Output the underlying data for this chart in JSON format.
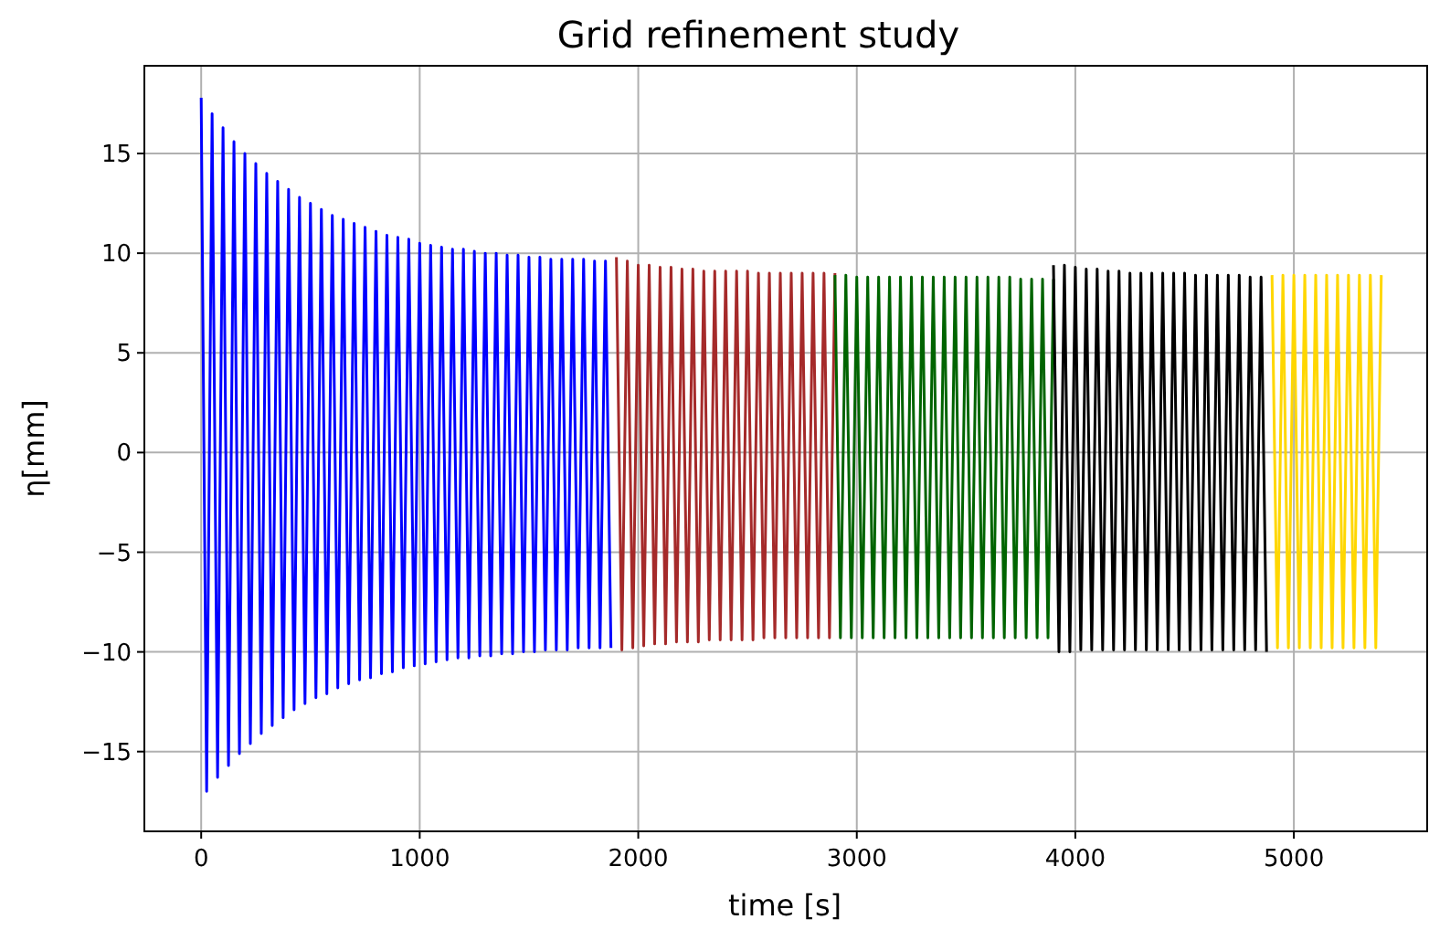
{
  "chart_data": {
    "type": "line",
    "title": "Grid refinement study",
    "xlabel": "time [s]",
    "ylabel": "η[mm]",
    "xlim": [
      -260,
      5610
    ],
    "ylim": [
      -19.0,
      19.4
    ],
    "xticks": [
      0,
      1000,
      2000,
      3000,
      4000,
      5000
    ],
    "yticks": [
      {
        "value": -15,
        "label": "−15"
      },
      {
        "value": -10,
        "label": "−10"
      },
      {
        "value": -5,
        "label": "−5"
      },
      0,
      5,
      10,
      15
    ],
    "grid": true,
    "line_style": "solid",
    "marker": "none",
    "series": [
      {
        "color": "#0000ff",
        "x": [
          0,
          25,
          50,
          75,
          100,
          125,
          150,
          175,
          200,
          225,
          250,
          275,
          300,
          325,
          350,
          375,
          400,
          425,
          450,
          475,
          500,
          525,
          550,
          575,
          600,
          625,
          650,
          675,
          700,
          725,
          750,
          775,
          800,
          825,
          850,
          875,
          900,
          925,
          950,
          975,
          1000,
          1025,
          1050,
          1075,
          1100,
          1125,
          1150,
          1175,
          1200,
          1225,
          1250,
          1275,
          1300,
          1325,
          1350,
          1375,
          1400,
          1425,
          1450,
          1475,
          1500,
          1525,
          1550,
          1575,
          1600,
          1625,
          1650,
          1675,
          1700,
          1725,
          1750,
          1775,
          1800,
          1825,
          1850,
          1875
        ],
        "values": [
          17.8,
          -17.0,
          17.0,
          -16.3,
          16.3,
          -15.7,
          15.6,
          -15.1,
          15.0,
          -14.6,
          14.5,
          -14.1,
          14.0,
          -13.7,
          13.6,
          -13.3,
          13.2,
          -12.9,
          12.8,
          -12.6,
          12.5,
          -12.3,
          12.2,
          -12.1,
          11.9,
          -11.8,
          11.7,
          -11.6,
          11.5,
          -11.4,
          11.3,
          -11.3,
          11.1,
          -11.1,
          10.9,
          -11.0,
          10.8,
          -10.8,
          10.7,
          -10.7,
          10.5,
          -10.6,
          10.4,
          -10.5,
          10.3,
          -10.4,
          10.2,
          -10.3,
          10.2,
          -10.3,
          10.1,
          -10.2,
          10.0,
          -10.2,
          10.0,
          -10.1,
          9.9,
          -10.1,
          9.9,
          -10.0,
          9.8,
          -10.0,
          9.8,
          -9.9,
          9.7,
          -9.9,
          9.7,
          -9.9,
          9.7,
          -9.8,
          9.7,
          -9.8,
          9.6,
          -9.8,
          9.6,
          -9.8
        ]
      },
      {
        "color": "#a52a2a",
        "x": [
          1900,
          1925,
          1950,
          1975,
          2000,
          2025,
          2050,
          2075,
          2100,
          2125,
          2150,
          2175,
          2200,
          2225,
          2250,
          2275,
          2300,
          2325,
          2350,
          2375,
          2400,
          2425,
          2450,
          2475,
          2500,
          2525,
          2550,
          2575,
          2600,
          2625,
          2650,
          2675,
          2700,
          2725,
          2750,
          2775,
          2800,
          2825,
          2850,
          2875,
          2900
        ],
        "values": [
          9.8,
          -9.9,
          9.6,
          -9.8,
          9.4,
          -9.7,
          9.4,
          -9.6,
          9.3,
          -9.6,
          9.3,
          -9.5,
          9.2,
          -9.5,
          9.2,
          -9.5,
          9.1,
          -9.4,
          9.1,
          -9.4,
          9.1,
          -9.4,
          9.1,
          -9.4,
          9.1,
          -9.4,
          9.0,
          -9.3,
          9.0,
          -9.3,
          9.0,
          -9.3,
          9.0,
          -9.3,
          9.0,
          -9.3,
          9.0,
          -9.3,
          9.0,
          -9.3,
          9.0
        ]
      },
      {
        "color": "#006400",
        "x": [
          2900,
          2925,
          2950,
          2975,
          3000,
          3025,
          3050,
          3075,
          3100,
          3125,
          3150,
          3175,
          3200,
          3225,
          3250,
          3275,
          3300,
          3325,
          3350,
          3375,
          3400,
          3425,
          3450,
          3475,
          3500,
          3525,
          3550,
          3575,
          3600,
          3625,
          3650,
          3675,
          3700,
          3725,
          3750,
          3775,
          3800,
          3825,
          3850,
          3875,
          3900
        ],
        "values": [
          8.9,
          -9.3,
          8.9,
          -9.3,
          8.8,
          -9.3,
          8.8,
          -9.3,
          8.8,
          -9.3,
          8.8,
          -9.3,
          8.8,
          -9.3,
          8.8,
          -9.3,
          8.8,
          -9.3,
          8.8,
          -9.3,
          8.8,
          -9.3,
          8.8,
          -9.3,
          8.8,
          -9.3,
          8.8,
          -9.3,
          8.8,
          -9.3,
          8.8,
          -9.3,
          8.8,
          -9.3,
          8.7,
          -9.3,
          8.7,
          -9.3,
          8.7,
          -9.3,
          8.7
        ]
      },
      {
        "color": "#000000",
        "x": [
          3900,
          3925,
          3950,
          3975,
          4000,
          4025,
          4050,
          4075,
          4100,
          4125,
          4150,
          4175,
          4200,
          4225,
          4250,
          4275,
          4300,
          4325,
          4350,
          4375,
          4400,
          4425,
          4450,
          4475,
          4500,
          4525,
          4550,
          4575,
          4600,
          4625,
          4650,
          4675,
          4700,
          4725,
          4750,
          4775,
          4800,
          4825,
          4850,
          4875
        ],
        "values": [
          9.4,
          -10.0,
          9.4,
          -10.0,
          9.3,
          -9.9,
          9.2,
          -9.9,
          9.2,
          -9.9,
          9.1,
          -9.9,
          9.1,
          -9.9,
          9.0,
          -9.9,
          9.0,
          -9.9,
          9.0,
          -9.9,
          9.0,
          -9.9,
          9.0,
          -9.9,
          9.0,
          -9.9,
          8.9,
          -9.9,
          8.9,
          -9.9,
          8.9,
          -9.9,
          8.9,
          -9.9,
          8.9,
          -9.9,
          8.8,
          -9.9,
          8.8,
          -10.0
        ]
      },
      {
        "color": "#ffd700",
        "x": [
          4900,
          4925,
          4950,
          4975,
          5000,
          5025,
          5050,
          5075,
          5100,
          5125,
          5150,
          5175,
          5200,
          5225,
          5250,
          5275,
          5300,
          5325,
          5350,
          5375,
          5400
        ],
        "values": [
          8.9,
          -9.8,
          8.9,
          -9.8,
          8.9,
          -9.8,
          8.9,
          -9.8,
          8.9,
          -9.8,
          8.9,
          -9.8,
          8.9,
          -9.8,
          8.9,
          -9.8,
          8.9,
          -9.8,
          8.9,
          -9.8,
          8.9
        ]
      }
    ]
  }
}
